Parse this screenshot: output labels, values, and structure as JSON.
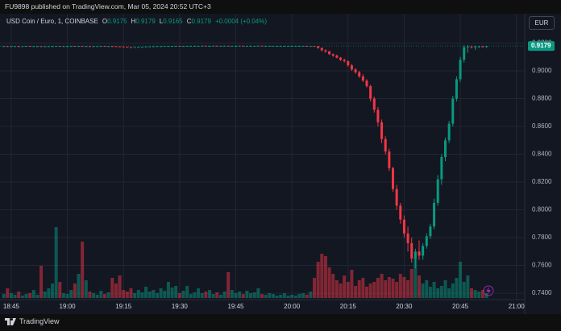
{
  "header": {
    "text": "FU9898 published on TradingView.com, Mar 05, 2024 20:52 UTC+3"
  },
  "footer": {
    "brand": "TradingView"
  },
  "chart_data": {
    "type": "candlestick",
    "symbol": "USD Coin / Euro, 1, COINBASE",
    "legend": [
      {
        "label": "O",
        "value": 0.9175
      },
      {
        "label": "H",
        "value": 0.9179
      },
      {
        "label": "L",
        "value": 0.9165
      },
      {
        "label": "C",
        "value": 0.9179
      }
    ],
    "change": "+0.0004 (+0.04%)",
    "currency": "EUR",
    "last_price": {
      "value": 0.9179,
      "label": "0.9179"
    },
    "up_color": "#089981",
    "down_color": "#f23645",
    "volume_up_color": "rgba(8,153,129,0.5)",
    "volume_down_color": "rgba(242,54,69,0.5)",
    "grid": true,
    "xlim": [
      "18:42",
      "21:02"
    ],
    "xticks": [
      "18:45",
      "19:00",
      "19:15",
      "19:30",
      "19:45",
      "20:00",
      "20:15",
      "20:30",
      "20:45",
      "21:00"
    ],
    "ylim": [
      0.7354,
      0.9255
    ],
    "yticks": [
      {
        "value": 0.74,
        "label": "0.7400"
      },
      {
        "value": 0.76,
        "label": "0.7600"
      },
      {
        "value": 0.78,
        "label": "0.7800"
      },
      {
        "value": 0.8,
        "label": "0.8000"
      },
      {
        "value": 0.82,
        "label": "0.8200"
      },
      {
        "value": 0.84,
        "label": "0.8400"
      },
      {
        "value": 0.86,
        "label": "0.8600"
      },
      {
        "value": 0.88,
        "label": "0.8800"
      },
      {
        "value": 0.9,
        "label": "0.9000"
      },
      {
        "value": 0.92,
        "label": "0.9200"
      }
    ],
    "x": [
      "18:43",
      "18:44",
      "18:45",
      "18:46",
      "18:47",
      "18:48",
      "18:49",
      "18:50",
      "18:51",
      "18:52",
      "18:53",
      "18:54",
      "18:55",
      "18:56",
      "18:57",
      "18:58",
      "18:59",
      "19:00",
      "19:01",
      "19:02",
      "19:03",
      "19:04",
      "19:05",
      "19:06",
      "19:07",
      "19:08",
      "19:09",
      "19:10",
      "19:11",
      "19:12",
      "19:13",
      "19:14",
      "19:15",
      "19:16",
      "19:17",
      "19:18",
      "19:19",
      "19:20",
      "19:21",
      "19:22",
      "19:23",
      "19:24",
      "19:25",
      "19:26",
      "19:27",
      "19:28",
      "19:29",
      "19:30",
      "19:31",
      "19:32",
      "19:33",
      "19:34",
      "19:35",
      "19:36",
      "19:37",
      "19:38",
      "19:39",
      "19:40",
      "19:41",
      "19:42",
      "19:43",
      "19:44",
      "19:45",
      "19:46",
      "19:47",
      "19:48",
      "19:49",
      "19:50",
      "19:51",
      "19:52",
      "19:53",
      "19:54",
      "19:55",
      "19:56",
      "19:57",
      "19:58",
      "19:59",
      "20:00",
      "20:01",
      "20:02",
      "20:03",
      "20:04",
      "20:05",
      "20:06",
      "20:07",
      "20:08",
      "20:09",
      "20:10",
      "20:11",
      "20:12",
      "20:13",
      "20:14",
      "20:15",
      "20:16",
      "20:17",
      "20:18",
      "20:19",
      "20:20",
      "20:21",
      "20:22",
      "20:23",
      "20:24",
      "20:25",
      "20:26",
      "20:27",
      "20:28",
      "20:29",
      "20:30",
      "20:31",
      "20:32",
      "20:33",
      "20:34",
      "20:35",
      "20:36",
      "20:37",
      "20:38",
      "20:39",
      "20:40",
      "20:41",
      "20:42",
      "20:43",
      "20:44",
      "20:45",
      "20:46",
      "20:47",
      "20:48",
      "20:49",
      "20:50",
      "20:51",
      "20:52"
    ],
    "ohlc": [
      [
        0.9177,
        0.9179,
        0.9176,
        0.9178
      ],
      [
        0.9178,
        0.9179,
        0.9176,
        0.9177
      ],
      [
        0.9177,
        0.9178,
        0.9176,
        0.9178
      ],
      [
        0.9178,
        0.9179,
        0.9177,
        0.9178
      ],
      [
        0.9178,
        0.9179,
        0.9176,
        0.9177
      ],
      [
        0.9177,
        0.9178,
        0.9176,
        0.9178
      ],
      [
        0.9178,
        0.9179,
        0.9177,
        0.9179
      ],
      [
        0.9179,
        0.9179,
        0.9177,
        0.9177
      ],
      [
        0.9177,
        0.9178,
        0.9176,
        0.9178
      ],
      [
        0.9178,
        0.9179,
        0.9177,
        0.9178
      ],
      [
        0.9178,
        0.9179,
        0.9175,
        0.9176
      ],
      [
        0.9176,
        0.9178,
        0.9175,
        0.9177
      ],
      [
        0.9177,
        0.9178,
        0.9176,
        0.9178
      ],
      [
        0.9178,
        0.9179,
        0.9177,
        0.9178
      ],
      [
        0.9178,
        0.918,
        0.9176,
        0.9179
      ],
      [
        0.9179,
        0.9179,
        0.9176,
        0.9177
      ],
      [
        0.9177,
        0.9178,
        0.9176,
        0.9178
      ],
      [
        0.9178,
        0.9179,
        0.9177,
        0.9178
      ],
      [
        0.9178,
        0.9179,
        0.9177,
        0.9179
      ],
      [
        0.9179,
        0.9179,
        0.9176,
        0.9178
      ],
      [
        0.9178,
        0.918,
        0.9177,
        0.9179
      ],
      [
        0.9179,
        0.918,
        0.9177,
        0.9178
      ],
      [
        0.9178,
        0.9179,
        0.9177,
        0.9178
      ],
      [
        0.9178,
        0.9179,
        0.9176,
        0.9177
      ],
      [
        0.9177,
        0.9178,
        0.9176,
        0.9178
      ],
      [
        0.9178,
        0.9179,
        0.9177,
        0.9178
      ],
      [
        0.9178,
        0.9179,
        0.9177,
        0.9179
      ],
      [
        0.9179,
        0.9179,
        0.9177,
        0.9178
      ],
      [
        0.9178,
        0.9179,
        0.9177,
        0.9178
      ],
      [
        0.9178,
        0.9179,
        0.9176,
        0.9177
      ],
      [
        0.9177,
        0.9178,
        0.9175,
        0.9176
      ],
      [
        0.9176,
        0.9177,
        0.9174,
        0.9175
      ],
      [
        0.9175,
        0.9176,
        0.9172,
        0.9173
      ],
      [
        0.9173,
        0.9174,
        0.917,
        0.9171
      ],
      [
        0.9171,
        0.9173,
        0.9169,
        0.917
      ],
      [
        0.917,
        0.9172,
        0.9168,
        0.9171
      ],
      [
        0.9171,
        0.9173,
        0.9169,
        0.9172
      ],
      [
        0.9172,
        0.9174,
        0.917,
        0.9173
      ],
      [
        0.9173,
        0.9176,
        0.9172,
        0.9175
      ],
      [
        0.9175,
        0.9177,
        0.9174,
        0.9176
      ],
      [
        0.9176,
        0.9178,
        0.9175,
        0.9177
      ],
      [
        0.9177,
        0.9178,
        0.9176,
        0.9178
      ],
      [
        0.9178,
        0.9179,
        0.9177,
        0.9178
      ],
      [
        0.9178,
        0.9179,
        0.9177,
        0.9179
      ],
      [
        0.9179,
        0.918,
        0.9178,
        0.9179
      ],
      [
        0.9179,
        0.918,
        0.9178,
        0.9179
      ],
      [
        0.9179,
        0.918,
        0.9178,
        0.918
      ],
      [
        0.918,
        0.918,
        0.9178,
        0.9179
      ],
      [
        0.9179,
        0.918,
        0.9178,
        0.9179
      ],
      [
        0.9179,
        0.918,
        0.9178,
        0.918
      ],
      [
        0.918,
        0.9181,
        0.9179,
        0.918
      ],
      [
        0.918,
        0.9181,
        0.9179,
        0.918
      ],
      [
        0.918,
        0.9181,
        0.9179,
        0.918
      ],
      [
        0.918,
        0.9181,
        0.9179,
        0.9181
      ],
      [
        0.9181,
        0.9181,
        0.9179,
        0.918
      ],
      [
        0.918,
        0.9181,
        0.9179,
        0.918
      ],
      [
        0.918,
        0.9181,
        0.9179,
        0.9181
      ],
      [
        0.9181,
        0.9181,
        0.9179,
        0.918
      ],
      [
        0.918,
        0.9181,
        0.9179,
        0.918
      ],
      [
        0.918,
        0.9181,
        0.9179,
        0.9181
      ],
      [
        0.9181,
        0.9181,
        0.918,
        0.918
      ],
      [
        0.918,
        0.9181,
        0.9179,
        0.918
      ],
      [
        0.918,
        0.9181,
        0.9179,
        0.918
      ],
      [
        0.918,
        0.9181,
        0.9179,
        0.9181
      ],
      [
        0.9181,
        0.9181,
        0.9179,
        0.918
      ],
      [
        0.918,
        0.9181,
        0.9179,
        0.918
      ],
      [
        0.918,
        0.9181,
        0.9179,
        0.918
      ],
      [
        0.918,
        0.9181,
        0.9179,
        0.918
      ],
      [
        0.918,
        0.9181,
        0.9179,
        0.9181
      ],
      [
        0.9181,
        0.9181,
        0.9179,
        0.918
      ],
      [
        0.918,
        0.9181,
        0.9179,
        0.918
      ],
      [
        0.918,
        0.9181,
        0.9179,
        0.918
      ],
      [
        0.918,
        0.9181,
        0.9179,
        0.918
      ],
      [
        0.918,
        0.9181,
        0.9179,
        0.918
      ],
      [
        0.918,
        0.9181,
        0.9179,
        0.918
      ],
      [
        0.918,
        0.9181,
        0.9179,
        0.918
      ],
      [
        0.918,
        0.9181,
        0.9179,
        0.918
      ],
      [
        0.918,
        0.9181,
        0.9179,
        0.918
      ],
      [
        0.918,
        0.9181,
        0.9179,
        0.918
      ],
      [
        0.918,
        0.9181,
        0.9179,
        0.918
      ],
      [
        0.918,
        0.9181,
        0.9179,
        0.918
      ],
      [
        0.918,
        0.9181,
        0.9179,
        0.9179
      ],
      [
        0.9179,
        0.918,
        0.9178,
        0.9179
      ],
      [
        0.9179,
        0.918,
        0.9176,
        0.9177
      ],
      [
        0.9177,
        0.9178,
        0.916,
        0.9165
      ],
      [
        0.9165,
        0.9168,
        0.914,
        0.9148
      ],
      [
        0.9148,
        0.9155,
        0.913,
        0.914
      ],
      [
        0.914,
        0.9145,
        0.9115,
        0.912
      ],
      [
        0.912,
        0.9125,
        0.91,
        0.911
      ],
      [
        0.911,
        0.9118,
        0.909,
        0.9095
      ],
      [
        0.9095,
        0.91,
        0.907,
        0.908
      ],
      [
        0.908,
        0.9088,
        0.906,
        0.907
      ],
      [
        0.907,
        0.9075,
        0.903,
        0.904
      ],
      [
        0.904,
        0.905,
        0.9,
        0.901
      ],
      [
        0.901,
        0.902,
        0.898,
        0.899
      ],
      [
        0.899,
        0.9,
        0.895,
        0.896
      ],
      [
        0.896,
        0.8975,
        0.892,
        0.893
      ],
      [
        0.893,
        0.894,
        0.888,
        0.889
      ],
      [
        0.889,
        0.89,
        0.878,
        0.88
      ],
      [
        0.88,
        0.8815,
        0.87,
        0.872
      ],
      [
        0.872,
        0.874,
        0.86,
        0.863
      ],
      [
        0.863,
        0.865,
        0.848,
        0.851
      ],
      [
        0.851,
        0.853,
        0.84,
        0.842
      ],
      [
        0.842,
        0.844,
        0.828,
        0.83
      ],
      [
        0.83,
        0.831,
        0.813,
        0.815
      ],
      [
        0.815,
        0.818,
        0.8,
        0.803
      ],
      [
        0.803,
        0.805,
        0.79,
        0.793
      ],
      [
        0.793,
        0.796,
        0.78,
        0.783
      ],
      [
        0.783,
        0.788,
        0.77,
        0.776
      ],
      [
        0.776,
        0.78,
        0.762,
        0.765
      ],
      [
        0.765,
        0.772,
        0.758,
        0.77
      ],
      [
        0.77,
        0.778,
        0.764,
        0.767
      ],
      [
        0.767,
        0.776,
        0.764,
        0.774
      ],
      [
        0.774,
        0.783,
        0.772,
        0.781
      ],
      [
        0.781,
        0.79,
        0.779,
        0.788
      ],
      [
        0.788,
        0.808,
        0.786,
        0.805
      ],
      [
        0.805,
        0.825,
        0.803,
        0.822
      ],
      [
        0.822,
        0.84,
        0.818,
        0.838
      ],
      [
        0.838,
        0.852,
        0.835,
        0.85
      ],
      [
        0.85,
        0.864,
        0.848,
        0.862
      ],
      [
        0.862,
        0.882,
        0.86,
        0.88
      ],
      [
        0.88,
        0.896,
        0.878,
        0.894
      ],
      [
        0.894,
        0.91,
        0.892,
        0.908
      ],
      [
        0.908,
        0.9185,
        0.906,
        0.917
      ],
      [
        0.917,
        0.9185,
        0.913,
        0.9175
      ],
      [
        0.9175,
        0.9182,
        0.916,
        0.9172
      ],
      [
        0.9172,
        0.918,
        0.915,
        0.9176
      ],
      [
        0.9176,
        0.918,
        0.9165,
        0.9177
      ],
      [
        0.9177,
        0.918,
        0.9168,
        0.9175
      ],
      [
        0.9175,
        0.9179,
        0.9165,
        0.9179
      ]
    ],
    "volume": [
      5,
      12,
      6,
      4,
      8,
      3,
      5,
      6,
      10,
      4,
      40,
      8,
      12,
      18,
      88,
      20,
      6,
      5,
      10,
      18,
      30,
      70,
      22,
      8,
      6,
      4,
      9,
      5,
      7,
      25,
      18,
      28,
      10,
      8,
      12,
      6,
      10,
      7,
      14,
      8,
      10,
      6,
      12,
      9,
      20,
      13,
      15,
      6,
      9,
      15,
      5,
      7,
      12,
      6,
      8,
      10,
      5,
      7,
      4,
      8,
      32,
      10,
      6,
      8,
      5,
      9,
      6,
      7,
      12,
      5,
      4,
      6,
      5,
      3,
      4,
      6,
      3,
      4,
      3,
      5,
      6,
      4,
      8,
      25,
      45,
      55,
      52,
      38,
      30,
      22,
      18,
      28,
      20,
      35,
      15,
      22,
      25,
      14,
      18,
      20,
      25,
      30,
      22,
      26,
      24,
      20,
      30,
      26,
      22,
      36,
      50,
      28,
      18,
      22,
      14,
      20,
      12,
      15,
      22,
      12,
      18,
      25,
      45,
      20,
      28,
      12,
      10,
      8,
      10,
      6
    ]
  }
}
